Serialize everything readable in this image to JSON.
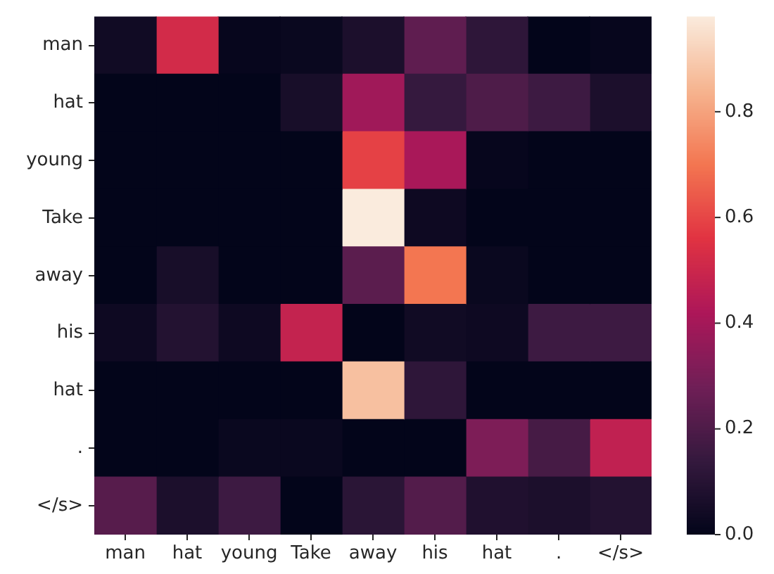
{
  "chart_data": {
    "type": "heatmap",
    "categories": [
      "man",
      "hat",
      "young",
      "Take",
      "away",
      "his",
      "hat",
      ".",
      "</s>"
    ],
    "y_categories": [
      "man",
      "hat",
      "young",
      "Take",
      "away",
      "his",
      "hat",
      ".",
      "</s>"
    ],
    "cells": [
      [
        0.04,
        0.52,
        0.01,
        0.02,
        0.07,
        0.24,
        0.12,
        0.0,
        0.01
      ],
      [
        0.0,
        0.0,
        0.0,
        0.06,
        0.39,
        0.14,
        0.2,
        0.16,
        0.07
      ],
      [
        0.0,
        0.0,
        0.0,
        0.0,
        0.59,
        0.41,
        0.01,
        0.0,
        0.0
      ],
      [
        0.0,
        0.0,
        0.0,
        0.0,
        0.98,
        0.03,
        0.0,
        0.0,
        0.0
      ],
      [
        0.0,
        0.06,
        0.0,
        0.0,
        0.23,
        0.7,
        0.02,
        0.0,
        0.0
      ],
      [
        0.03,
        0.09,
        0.03,
        0.48,
        0.0,
        0.04,
        0.03,
        0.16,
        0.16
      ],
      [
        0.0,
        0.0,
        0.0,
        0.0,
        0.87,
        0.12,
        0.0,
        0.0,
        0.0
      ],
      [
        0.0,
        0.0,
        0.02,
        0.02,
        0.0,
        0.0,
        0.31,
        0.18,
        0.47
      ],
      [
        0.22,
        0.07,
        0.16,
        0.0,
        0.11,
        0.21,
        0.08,
        0.07,
        0.09
      ]
    ],
    "clim": [
      0,
      0.98
    ],
    "cticks": [
      {
        "value": 0,
        "label": "0.0"
      },
      0.2,
      0.4,
      0.6,
      0.8
    ]
  }
}
